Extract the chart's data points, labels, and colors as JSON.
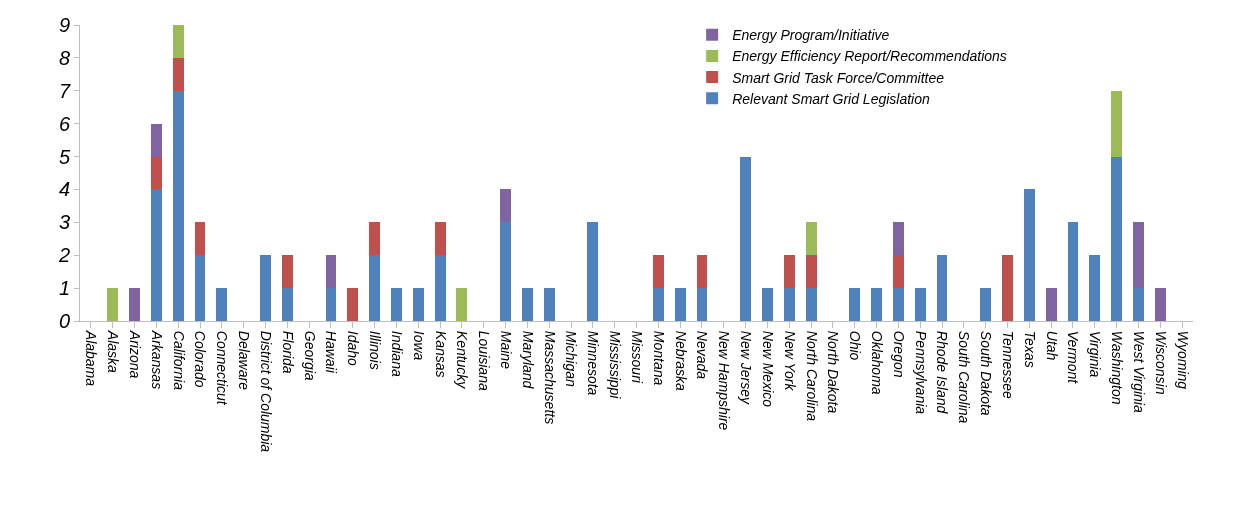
{
  "chart_data": {
    "type": "bar",
    "stacked": true,
    "legend": "top right",
    "grid": false,
    "ylim": [
      0,
      9
    ],
    "yticks": [
      0,
      1,
      2,
      3,
      4,
      5,
      6,
      7,
      8,
      9
    ],
    "categories": [
      "Alabama",
      "Alaska",
      "Arizona",
      "Arkansas",
      "California",
      "Colorado",
      "Connecticut",
      "Delaware",
      "District of Columbia",
      "Florida",
      "Georgia",
      "Hawaii",
      "Idaho",
      "Illinois",
      "Indiana",
      "Iowa",
      "Kansas",
      "Kentucky",
      "Louisiana",
      "Maine",
      "Maryland",
      "Massachusetts",
      "Michigan",
      "Minnesota",
      "Mississippi",
      "Missouri",
      "Montana",
      "Nebraska",
      "Nevada",
      "New Hampshire",
      "New Jersey",
      "New Mexico",
      "New York",
      "North Carolina",
      "North Dakota",
      "Ohio",
      "Oklahoma",
      "Oregon",
      "Pennsylvania",
      "Rhode Island",
      "South Carolina",
      "South Dakota",
      "Tennessee",
      "Texas",
      "Utah",
      "Vermont",
      "Virginia",
      "Washington",
      "West Virginia",
      "Wisconsin",
      "Wyoming"
    ],
    "series": [
      {
        "name": "Relevant Smart Grid Legislation",
        "color": "#4f81bd",
        "values": [
          0,
          0,
          0,
          4,
          7,
          2,
          1,
          0,
          2,
          1,
          0,
          1,
          0,
          2,
          1,
          1,
          2,
          0,
          0,
          3,
          1,
          1,
          0,
          3,
          0,
          0,
          1,
          1,
          1,
          0,
          5,
          1,
          1,
          1,
          0,
          1,
          1,
          1,
          1,
          2,
          0,
          1,
          0,
          4,
          0,
          3,
          2,
          5,
          1,
          0,
          0
        ]
      },
      {
        "name": "Smart Grid Task Force/Committee",
        "color": "#c0504d",
        "values": [
          0,
          0,
          0,
          1,
          1,
          1,
          0,
          0,
          0,
          1,
          0,
          0,
          1,
          1,
          0,
          0,
          1,
          0,
          0,
          0,
          0,
          0,
          0,
          0,
          0,
          0,
          1,
          0,
          1,
          0,
          0,
          0,
          1,
          1,
          0,
          0,
          0,
          1,
          0,
          0,
          0,
          0,
          2,
          0,
          0,
          0,
          0,
          0,
          0,
          0,
          0
        ]
      },
      {
        "name": "Energy Efficiency Report/Recommendations",
        "color": "#9bbb59",
        "values": [
          0,
          1,
          0,
          0,
          1,
          0,
          0,
          0,
          0,
          0,
          0,
          0,
          0,
          0,
          0,
          0,
          0,
          1,
          0,
          0,
          0,
          0,
          0,
          0,
          0,
          0,
          0,
          0,
          0,
          0,
          0,
          0,
          0,
          1,
          0,
          0,
          0,
          0,
          0,
          0,
          0,
          0,
          0,
          0,
          0,
          0,
          0,
          2,
          0,
          0,
          0
        ]
      },
      {
        "name": "Energy Program/Initiative",
        "color": "#8064a2",
        "values": [
          0,
          0,
          1,
          1,
          0,
          0,
          0,
          0,
          0,
          0,
          0,
          1,
          0,
          0,
          0,
          0,
          0,
          0,
          0,
          1,
          0,
          0,
          0,
          0,
          0,
          0,
          0,
          0,
          0,
          0,
          0,
          0,
          0,
          0,
          0,
          0,
          0,
          1,
          0,
          0,
          0,
          0,
          0,
          0,
          1,
          0,
          0,
          0,
          2,
          1,
          0
        ]
      }
    ]
  }
}
